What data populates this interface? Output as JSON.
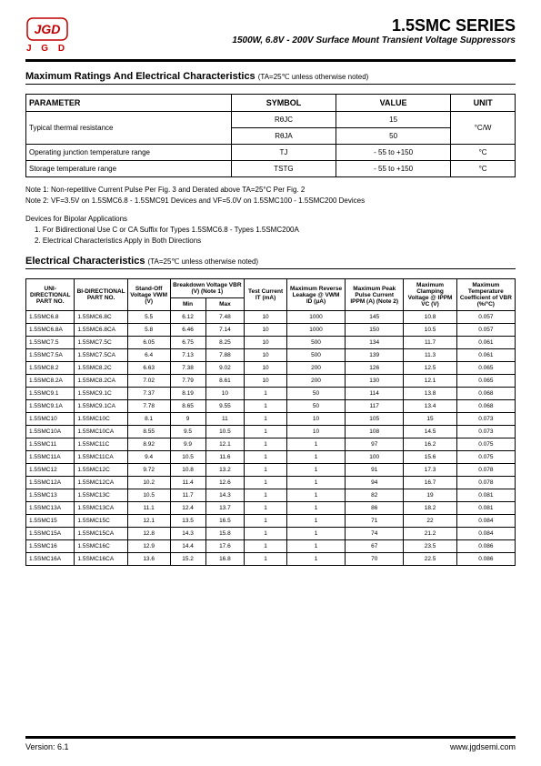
{
  "header": {
    "logo_letters": "J G D",
    "title": "1.5SMC SERIES",
    "subtitle": "1500W, 6.8V - 200V Surface Mount Transient Voltage Suppressors"
  },
  "section1": {
    "heading": "Maximum Ratings And Electrical Characteristics",
    "note": "(TA=25℃ unless otherwise noted)"
  },
  "ratings_table": {
    "headers": [
      "PARAMETER",
      "SYMBOL",
      "VALUE",
      "UNIT"
    ],
    "row1_param": "Typical thermal resistance",
    "row1a_sym": "RθJC",
    "row1a_val": "15",
    "row1b_sym": "RθJA",
    "row1b_val": "50",
    "row1_unit": "°C/W",
    "row2_param": "Operating junction temperature range",
    "row2_sym": "TJ",
    "row2_val": "- 55 to +150",
    "row2_unit": "°C",
    "row3_param": "Storage temperature range",
    "row3_sym": "TSTG",
    "row3_val": "- 55 to +150",
    "row3_unit": "°C"
  },
  "notes": {
    "n1": "Note 1: Non-repetitive Current Pulse Per Fig. 3 and Derated above TA=25°C Per Fig. 2",
    "n2": "Note 2: VF=3.5V on 1.5SMC6.8 - 1.5SMC91 Devices and VF=5.0V on 1.5SMC100 - 1.5SMC200 Devices",
    "bipolar_heading": "Devices for Bipolar Applications",
    "b1": "1. For Bidirectional Use C or CA Suffix for Types 1.5SMC6.8 - Types 1.5SMC200A",
    "b2": "2. Electrical Characteristics Apply in Both Directions"
  },
  "section2": {
    "heading": "Electrical Characteristics",
    "note": "(TA=25℃ unless otherwise noted)"
  },
  "elec_headers": {
    "h1": "UNI-DIRECTIONAL PART NO.",
    "h2": "BI-DIRECTIONAL PART NO.",
    "h3": "Stand-Off Voltage VWM (V)",
    "h4": "Breakdown Voltage VBR (V) (Note 1)",
    "h4a": "Min",
    "h4b": "Max",
    "h5": "Test Current IT (mA)",
    "h6": "Maximum Reverse Leakage @ VWM ID (μA)",
    "h7": "Maximum Peak Pulse Current IPPM (A) (Note 2)",
    "h8": "Maximum Clamping Voltage @ IPPM VC (V)",
    "h9": "Maximum Temperature Coefficient of VBR (%/°C)"
  },
  "rows": [
    [
      "1.5SMC6.8",
      "1.5SMC6.8C",
      "5.5",
      "6.12",
      "7.48",
      "10",
      "1000",
      "145",
      "10.8",
      "0.057"
    ],
    [
      "1.5SMC6.8A",
      "1.5SMC6.8CA",
      "5.8",
      "6.46",
      "7.14",
      "10",
      "1000",
      "150",
      "10.5",
      "0.057"
    ],
    [
      "1.5SMC7.5",
      "1.5SMC7.5C",
      "6.05",
      "6.75",
      "8.25",
      "10",
      "500",
      "134",
      "11.7",
      "0.061"
    ],
    [
      "1.5SMC7.5A",
      "1.5SMC7.5CA",
      "6.4",
      "7.13",
      "7.88",
      "10",
      "500",
      "139",
      "11.3",
      "0.061"
    ],
    [
      "1.5SMC8.2",
      "1.5SMC8.2C",
      "6.63",
      "7.38",
      "9.02",
      "10",
      "200",
      "126",
      "12.5",
      "0.065"
    ],
    [
      "1.5SMC8.2A",
      "1.5SMC8.2CA",
      "7.02",
      "7.79",
      "8.61",
      "10",
      "200",
      "130",
      "12.1",
      "0.065"
    ],
    [
      "1.5SMC9.1",
      "1.5SMC9.1C",
      "7.37",
      "8.19",
      "10",
      "1",
      "50",
      "114",
      "13.8",
      "0.068"
    ],
    [
      "1.5SMC9.1A",
      "1.5SMC9.1CA",
      "7.78",
      "8.65",
      "9.55",
      "1",
      "50",
      "117",
      "13.4",
      "0.068"
    ],
    [
      "1.5SMC10",
      "1.5SMC10C",
      "8.1",
      "9",
      "11",
      "1",
      "10",
      "105",
      "15",
      "0.073"
    ],
    [
      "1.5SMC10A",
      "1.5SMC10CA",
      "8.55",
      "9.5",
      "10.5",
      "1",
      "10",
      "108",
      "14.5",
      "0.073"
    ],
    [
      "1.5SMC11",
      "1.5SMC11C",
      "8.92",
      "9.9",
      "12.1",
      "1",
      "1",
      "97",
      "16.2",
      "0.075"
    ],
    [
      "1.5SMC11A",
      "1.5SMC11CA",
      "9.4",
      "10.5",
      "11.6",
      "1",
      "1",
      "100",
      "15.6",
      "0.075"
    ],
    [
      "1.5SMC12",
      "1.5SMC12C",
      "9.72",
      "10.8",
      "13.2",
      "1",
      "1",
      "91",
      "17.3",
      "0.078"
    ],
    [
      "1.5SMC12A",
      "1.5SMC12CA",
      "10.2",
      "11.4",
      "12.6",
      "1",
      "1",
      "94",
      "16.7",
      "0.078"
    ],
    [
      "1.5SMC13",
      "1.5SMC13C",
      "10.5",
      "11.7",
      "14.3",
      "1",
      "1",
      "82",
      "19",
      "0.081"
    ],
    [
      "1.5SMC13A",
      "1.5SMC13CA",
      "11.1",
      "12.4",
      "13.7",
      "1",
      "1",
      "86",
      "18.2",
      "0.081"
    ],
    [
      "1.5SMC15",
      "1.5SMC15C",
      "12.1",
      "13.5",
      "16.5",
      "1",
      "1",
      "71",
      "22",
      "0.084"
    ],
    [
      "1.5SMC15A",
      "1.5SMC15CA",
      "12.8",
      "14.3",
      "15.8",
      "1",
      "1",
      "74",
      "21.2",
      "0.084"
    ],
    [
      "1.5SMC16",
      "1.5SMC16C",
      "12.9",
      "14.4",
      "17.6",
      "1",
      "1",
      "67",
      "23.5",
      "0.086"
    ],
    [
      "1.5SMC16A",
      "1.5SMC16CA",
      "13.6",
      "15.2",
      "16.8",
      "1",
      "1",
      "70",
      "22.5",
      "0.086"
    ]
  ],
  "footer": {
    "left": "Version: 6.1",
    "right": "www.jgdsemi.com"
  },
  "colors": {
    "logo_red": "#c00000",
    "border": "#000000"
  }
}
